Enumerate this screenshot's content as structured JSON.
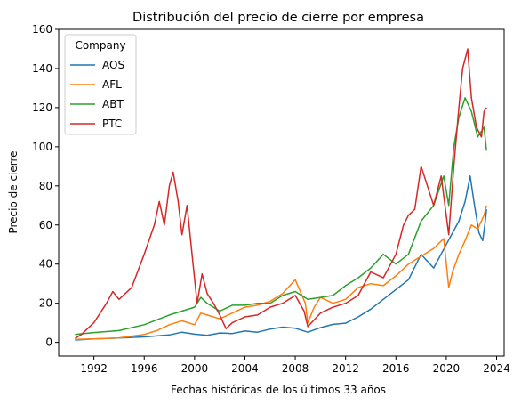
{
  "chart_data": {
    "type": "line",
    "title": "Distribución del precio de cierre por empresa",
    "xlabel": "Fechas históricas de los últimos 33 años",
    "ylabel": "Precio de cierre",
    "xlim": [
      1989.2,
      2024.6
    ],
    "ylim": [
      -7,
      160
    ],
    "x_ticks": [
      1992,
      1996,
      2000,
      2004,
      2008,
      2012,
      2016,
      2020,
      2024
    ],
    "y_ticks": [
      0,
      20,
      40,
      60,
      80,
      100,
      120,
      140,
      160
    ],
    "grid": false,
    "legend": {
      "title": "Company",
      "placement": "top-left"
    },
    "series": [
      {
        "name": "AOS",
        "color": "#1f77b4",
        "points": [
          [
            1990.5,
            1.2
          ],
          [
            1992,
            1.8
          ],
          [
            1994,
            2.2
          ],
          [
            1996,
            2.8
          ],
          [
            1998,
            3.8
          ],
          [
            1999,
            5.2
          ],
          [
            2000,
            4.2
          ],
          [
            2001,
            3.6
          ],
          [
            2002,
            4.8
          ],
          [
            2003,
            4.5
          ],
          [
            2004,
            5.8
          ],
          [
            2005,
            5.2
          ],
          [
            2006,
            6.8
          ],
          [
            2007,
            7.8
          ],
          [
            2008,
            7.2
          ],
          [
            2009,
            5.2
          ],
          [
            2010,
            7.5
          ],
          [
            2011,
            9.2
          ],
          [
            2012,
            9.8
          ],
          [
            2013,
            13
          ],
          [
            2014,
            17
          ],
          [
            2015,
            22
          ],
          [
            2016,
            27
          ],
          [
            2017,
            32
          ],
          [
            2018,
            45
          ],
          [
            2019,
            38
          ],
          [
            2020,
            50
          ],
          [
            2021,
            62
          ],
          [
            2021.5,
            72
          ],
          [
            2021.9,
            85
          ],
          [
            2022.2,
            72
          ],
          [
            2022.6,
            56
          ],
          [
            2022.9,
            52
          ],
          [
            2023.1,
            62
          ],
          [
            2023.2,
            68
          ]
        ]
      },
      {
        "name": "AFL",
        "color": "#ff7f0e",
        "points": [
          [
            1990.5,
            1.5
          ],
          [
            1992,
            1.8
          ],
          [
            1994,
            2.3
          ],
          [
            1996,
            4
          ],
          [
            1997,
            6
          ],
          [
            1998,
            9
          ],
          [
            1999,
            11
          ],
          [
            2000,
            9
          ],
          [
            2000.5,
            15
          ],
          [
            2001,
            14
          ],
          [
            2002,
            12
          ],
          [
            2003,
            15
          ],
          [
            2004,
            18
          ],
          [
            2005,
            19
          ],
          [
            2006,
            21
          ],
          [
            2007,
            25
          ],
          [
            2008,
            32
          ],
          [
            2008.8,
            20
          ],
          [
            2009,
            10
          ],
          [
            2009.5,
            18
          ],
          [
            2010,
            23
          ],
          [
            2011,
            20
          ],
          [
            2012,
            22
          ],
          [
            2013,
            28
          ],
          [
            2014,
            30
          ],
          [
            2015,
            29
          ],
          [
            2016,
            34
          ],
          [
            2017,
            40
          ],
          [
            2018,
            44
          ],
          [
            2019,
            48
          ],
          [
            2019.8,
            53
          ],
          [
            2020.2,
            28
          ],
          [
            2020.5,
            36
          ],
          [
            2021,
            45
          ],
          [
            2021.5,
            52
          ],
          [
            2022,
            60
          ],
          [
            2022.5,
            58
          ],
          [
            2023,
            65
          ],
          [
            2023.2,
            70
          ]
        ]
      },
      {
        "name": "ABT",
        "color": "#2ca02c",
        "points": [
          [
            1990.5,
            4
          ],
          [
            1992,
            5
          ],
          [
            1994,
            6
          ],
          [
            1996,
            9
          ],
          [
            1998,
            14
          ],
          [
            2000,
            18
          ],
          [
            2000.5,
            23
          ],
          [
            2001,
            20
          ],
          [
            2002,
            16
          ],
          [
            2003,
            19
          ],
          [
            2004,
            19
          ],
          [
            2005,
            20
          ],
          [
            2006,
            20
          ],
          [
            2007,
            24
          ],
          [
            2008,
            26
          ],
          [
            2009,
            22
          ],
          [
            2010,
            23
          ],
          [
            2011,
            24
          ],
          [
            2012,
            29
          ],
          [
            2013,
            33
          ],
          [
            2014,
            38
          ],
          [
            2015,
            45
          ],
          [
            2016,
            40
          ],
          [
            2017,
            45
          ],
          [
            2018,
            62
          ],
          [
            2019,
            70
          ],
          [
            2019.8,
            85
          ],
          [
            2020.2,
            70
          ],
          [
            2020.6,
            100
          ],
          [
            2021,
            115
          ],
          [
            2021.5,
            125
          ],
          [
            2022,
            118
          ],
          [
            2022.5,
            105
          ],
          [
            2023,
            110
          ],
          [
            2023.2,
            98
          ]
        ]
      },
      {
        "name": "PTC",
        "color": "#d62728",
        "points": [
          [
            1990.5,
            2
          ],
          [
            1991,
            4
          ],
          [
            1992,
            10
          ],
          [
            1993,
            20
          ],
          [
            1993.5,
            26
          ],
          [
            1994,
            22
          ],
          [
            1995,
            28
          ],
          [
            1996,
            45
          ],
          [
            1996.8,
            60
          ],
          [
            1997.2,
            72
          ],
          [
            1997.6,
            60
          ],
          [
            1998,
            80
          ],
          [
            1998.3,
            87
          ],
          [
            1998.7,
            72
          ],
          [
            1999,
            55
          ],
          [
            1999.4,
            70
          ],
          [
            1999.8,
            45
          ],
          [
            2000.2,
            20
          ],
          [
            2000.6,
            35
          ],
          [
            2001,
            25
          ],
          [
            2001.5,
            20
          ],
          [
            2002,
            14
          ],
          [
            2002.5,
            7
          ],
          [
            2003,
            10
          ],
          [
            2004,
            13
          ],
          [
            2005,
            14
          ],
          [
            2006,
            18
          ],
          [
            2007,
            20
          ],
          [
            2008,
            24
          ],
          [
            2008.7,
            16
          ],
          [
            2009,
            8
          ],
          [
            2010,
            15
          ],
          [
            2011,
            18
          ],
          [
            2012,
            20
          ],
          [
            2013,
            24
          ],
          [
            2014,
            36
          ],
          [
            2015,
            33
          ],
          [
            2016,
            45
          ],
          [
            2016.6,
            60
          ],
          [
            2017,
            65
          ],
          [
            2017.5,
            68
          ],
          [
            2018,
            90
          ],
          [
            2018.5,
            80
          ],
          [
            2019,
            70
          ],
          [
            2019.6,
            85
          ],
          [
            2020.2,
            55
          ],
          [
            2020.6,
            90
          ],
          [
            2021,
            120
          ],
          [
            2021.3,
            140
          ],
          [
            2021.7,
            150
          ],
          [
            2022,
            125
          ],
          [
            2022.4,
            110
          ],
          [
            2022.8,
            105
          ],
          [
            2023,
            118
          ],
          [
            2023.2,
            120
          ]
        ]
      }
    ]
  }
}
